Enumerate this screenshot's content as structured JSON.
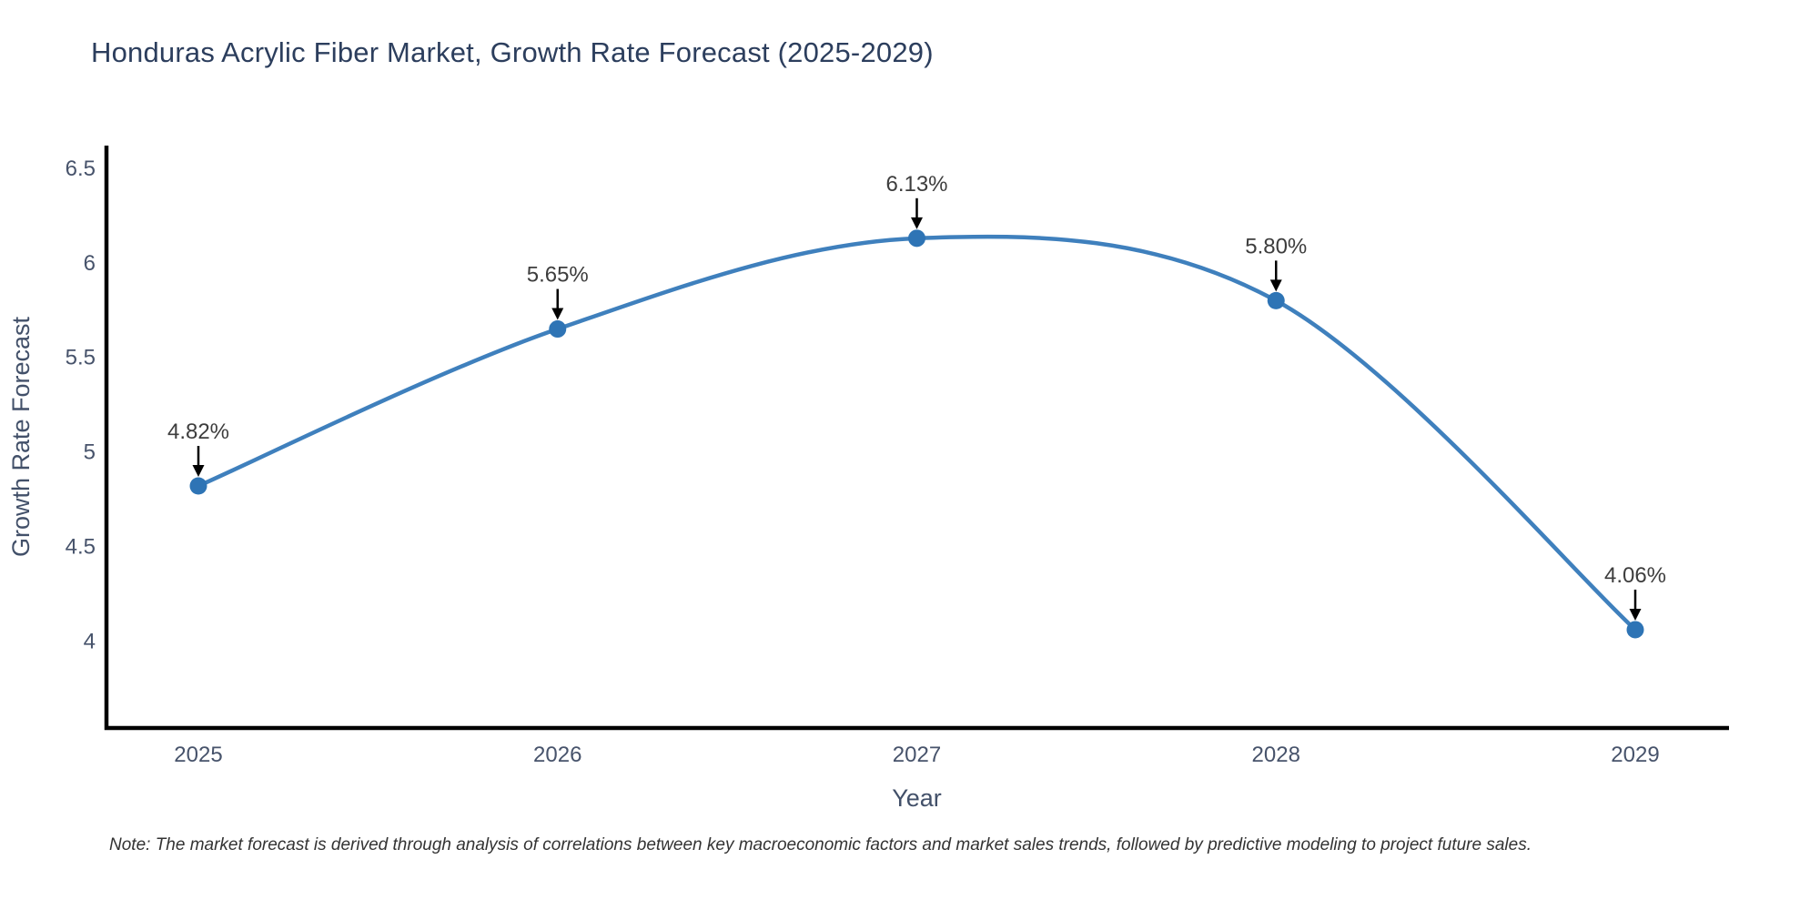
{
  "footnote": "Note: The market forecast is derived through analysis of correlations between key macroeconomic factors and market sales trends, followed by predictive modeling to project future sales.",
  "chart_data": {
    "type": "line",
    "title": "Honduras Acrylic Fiber Market, Growth Rate Forecast (2025-2029)",
    "x": [
      "2025",
      "2026",
      "2027",
      "2028",
      "2029"
    ],
    "values": [
      4.82,
      5.65,
      6.13,
      5.8,
      4.06
    ],
    "point_labels": [
      "4.82%",
      "5.65%",
      "6.13%",
      "5.80%",
      "4.06%"
    ],
    "xlabel": "Year",
    "ylabel": "Growth Rate Forecast",
    "yticks": [
      4,
      4.5,
      5,
      5.5,
      6,
      6.5
    ],
    "ytick_labels": [
      "4",
      "4.5",
      "5",
      "5.5",
      "6",
      "6.5"
    ],
    "ylim": [
      3.54,
      6.62
    ],
    "line_shape": "spline",
    "grid": false,
    "legend": false,
    "colors": {
      "line": "#3f80bd",
      "marker": "#2e74b5",
      "arrow": "#000000",
      "axis": "#000000",
      "title_text": "#2c3e5d",
      "tick_text": "#47536b",
      "point_label_text": "#3d3d3d"
    }
  }
}
